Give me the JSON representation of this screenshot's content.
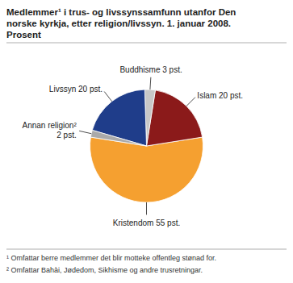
{
  "chart_data": {
    "type": "pie",
    "title": "Medlemmer¹ i trus- og livssynssamfunn utanfor Den\nnorske kyrkja, etter religion/livssyn. 1. januar 2008.\nProsent",
    "categories": [
      "Kristendom 55 pst.",
      "Islam 20 pst.",
      "Buddhisme 3 pst.",
      "Livssyn 20 pst.",
      "Annan religion²\n2 pst."
    ],
    "values": [
      55,
      20,
      3,
      20,
      2
    ],
    "colors": [
      "#F5A030",
      "#8B1A1A",
      "#C8C8C8",
      "#1F3D8A",
      "#AAAAAA"
    ],
    "annotations": [
      "¹ Omfattar berre medlemmer det blir motteke offentleg stønad for.",
      "² Omfattar Bahài, Jødedom, Sikhisme og andre trusretningar."
    ]
  }
}
